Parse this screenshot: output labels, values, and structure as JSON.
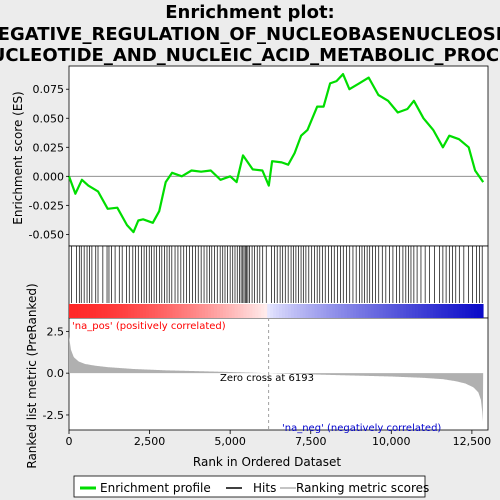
{
  "title_lines": [
    "Enrichment plot:",
    "NEGATIVE_REGULATION_OF_NUCLEOBASENUCLEOSID",
    "NUCLEOTIDE_AND_NUCLEIC_ACID_METABOLIC_PROCES"
  ],
  "colors": {
    "es_line": "#00dd00",
    "hits": "#000000",
    "metric_fill": "#b0b0b0",
    "pos_label": "#ff0000",
    "neg_label": "#0000cc",
    "zero_line": "#a0a0a0",
    "panel_bg": "#ffffff",
    "page_bg": "#ececec"
  },
  "chart_data": {
    "type": "line",
    "xlabel": "Rank in Ordered Dataset",
    "ylabel_top": "Enrichment score (ES)",
    "ylabel_bottom": "Ranked list metric (PreRanked)",
    "x_range": [
      0,
      13000
    ],
    "x_ticks": [
      0,
      2500,
      5000,
      7500,
      10000,
      12500
    ],
    "x_tick_labels": [
      "0",
      "2,500",
      "5,000",
      "7,500",
      "10,000",
      "12,500"
    ],
    "es_range": [
      -0.06,
      0.095
    ],
    "es_ticks": [
      -0.05,
      -0.025,
      0.0,
      0.025,
      0.05,
      0.075
    ],
    "es_tick_labels": [
      "-0.050",
      "-0.025",
      "0.000",
      "0.025",
      "0.050",
      "0.075"
    ],
    "metric_range": [
      -3.4,
      3.3
    ],
    "metric_ticks": [
      -2.5,
      0.0,
      2.5
    ],
    "metric_tick_labels": [
      "-2.5",
      "0.0",
      "2.5"
    ],
    "es_curve": {
      "x": [
        0,
        200,
        400,
        600,
        900,
        1200,
        1500,
        1800,
        2000,
        2150,
        2300,
        2600,
        2800,
        3000,
        3200,
        3500,
        3800,
        4100,
        4400,
        4700,
        5000,
        5200,
        5400,
        5700,
        6000,
        6200,
        6300,
        6600,
        6800,
        7000,
        7200,
        7400,
        7700,
        7900,
        8100,
        8300,
        8500,
        8700,
        9000,
        9300,
        9600,
        9900,
        10200,
        10500,
        10700,
        11000,
        11300,
        11600,
        11800,
        12100,
        12400,
        12600,
        12850
      ],
      "y": [
        0.0,
        -0.015,
        -0.003,
        -0.008,
        -0.013,
        -0.028,
        -0.027,
        -0.042,
        -0.048,
        -0.038,
        -0.037,
        -0.04,
        -0.03,
        -0.005,
        0.003,
        0.0,
        0.005,
        0.004,
        0.005,
        -0.003,
        0.0,
        -0.005,
        0.018,
        0.006,
        0.005,
        -0.008,
        0.013,
        0.012,
        0.01,
        0.02,
        0.035,
        0.04,
        0.06,
        0.06,
        0.08,
        0.082,
        0.088,
        0.075,
        0.08,
        0.085,
        0.07,
        0.065,
        0.055,
        0.058,
        0.065,
        0.05,
        0.04,
        0.025,
        0.035,
        0.032,
        0.025,
        0.005,
        -0.005
      ]
    },
    "hit_ranks": [
      80,
      230,
      320,
      380,
      470,
      560,
      640,
      710,
      830,
      900,
      1050,
      1180,
      1240,
      1320,
      1430,
      1560,
      1650,
      1780,
      1870,
      1980,
      2060,
      2150,
      2250,
      2330,
      2410,
      2490,
      2560,
      2640,
      2720,
      2810,
      2880,
      2960,
      3040,
      3110,
      3190,
      3290,
      3380,
      3470,
      3560,
      3650,
      3740,
      3830,
      3920,
      4010,
      4100,
      4190,
      4280,
      4360,
      4430,
      4510,
      4600,
      4690,
      4770,
      4840,
      4920,
      5000,
      5080,
      5150,
      5220,
      5290,
      5340,
      5390,
      5430,
      5470,
      5510,
      5550,
      5600,
      5680,
      5760,
      5840,
      5920,
      6010,
      6120,
      6280,
      6380,
      6460,
      6550,
      6630,
      6710,
      6800,
      6890,
      6960,
      7040,
      7120,
      7200,
      7270,
      7350,
      7440,
      7530,
      7620,
      7700,
      7780,
      7860,
      7950,
      8050,
      8140,
      8230,
      8330,
      8420,
      8510,
      8610,
      8710,
      8810,
      8910,
      9010,
      9090,
      9170,
      9250,
      9330,
      9420,
      9510,
      9610,
      9720,
      9830,
      9940,
      10050,
      10160,
      10260,
      10360,
      10450,
      10530,
      10610,
      10700,
      10800,
      10920,
      11050,
      11190,
      11340,
      11500,
      11600,
      11700,
      11800,
      11900,
      12000,
      12110,
      12250,
      12400,
      12520,
      12640,
      12740,
      12820
    ],
    "metric_curve": {
      "x": [
        0,
        60,
        150,
        300,
        500,
        800,
        1200,
        2000,
        3000,
        4000,
        5000,
        6193,
        7000,
        8000,
        9000,
        10000,
        11000,
        11600,
        12000,
        12300,
        12550,
        12700,
        12780,
        12820,
        12850
      ],
      "y": [
        2.2,
        1.4,
        0.95,
        0.7,
        0.55,
        0.45,
        0.36,
        0.25,
        0.17,
        0.12,
        0.07,
        0.0,
        -0.05,
        -0.1,
        -0.15,
        -0.2,
        -0.28,
        -0.36,
        -0.48,
        -0.62,
        -0.85,
        -1.15,
        -1.6,
        -2.3,
        -3.2
      ]
    },
    "zero_cross": 6193,
    "annotations": {
      "pos": "'na_pos' (positively correlated)",
      "neg": "'na_neg' (negatively correlated)",
      "zero": "Zero cross at 6193"
    },
    "legend": [
      "Enrichment profile",
      "Hits",
      "Ranking metric scores"
    ]
  }
}
